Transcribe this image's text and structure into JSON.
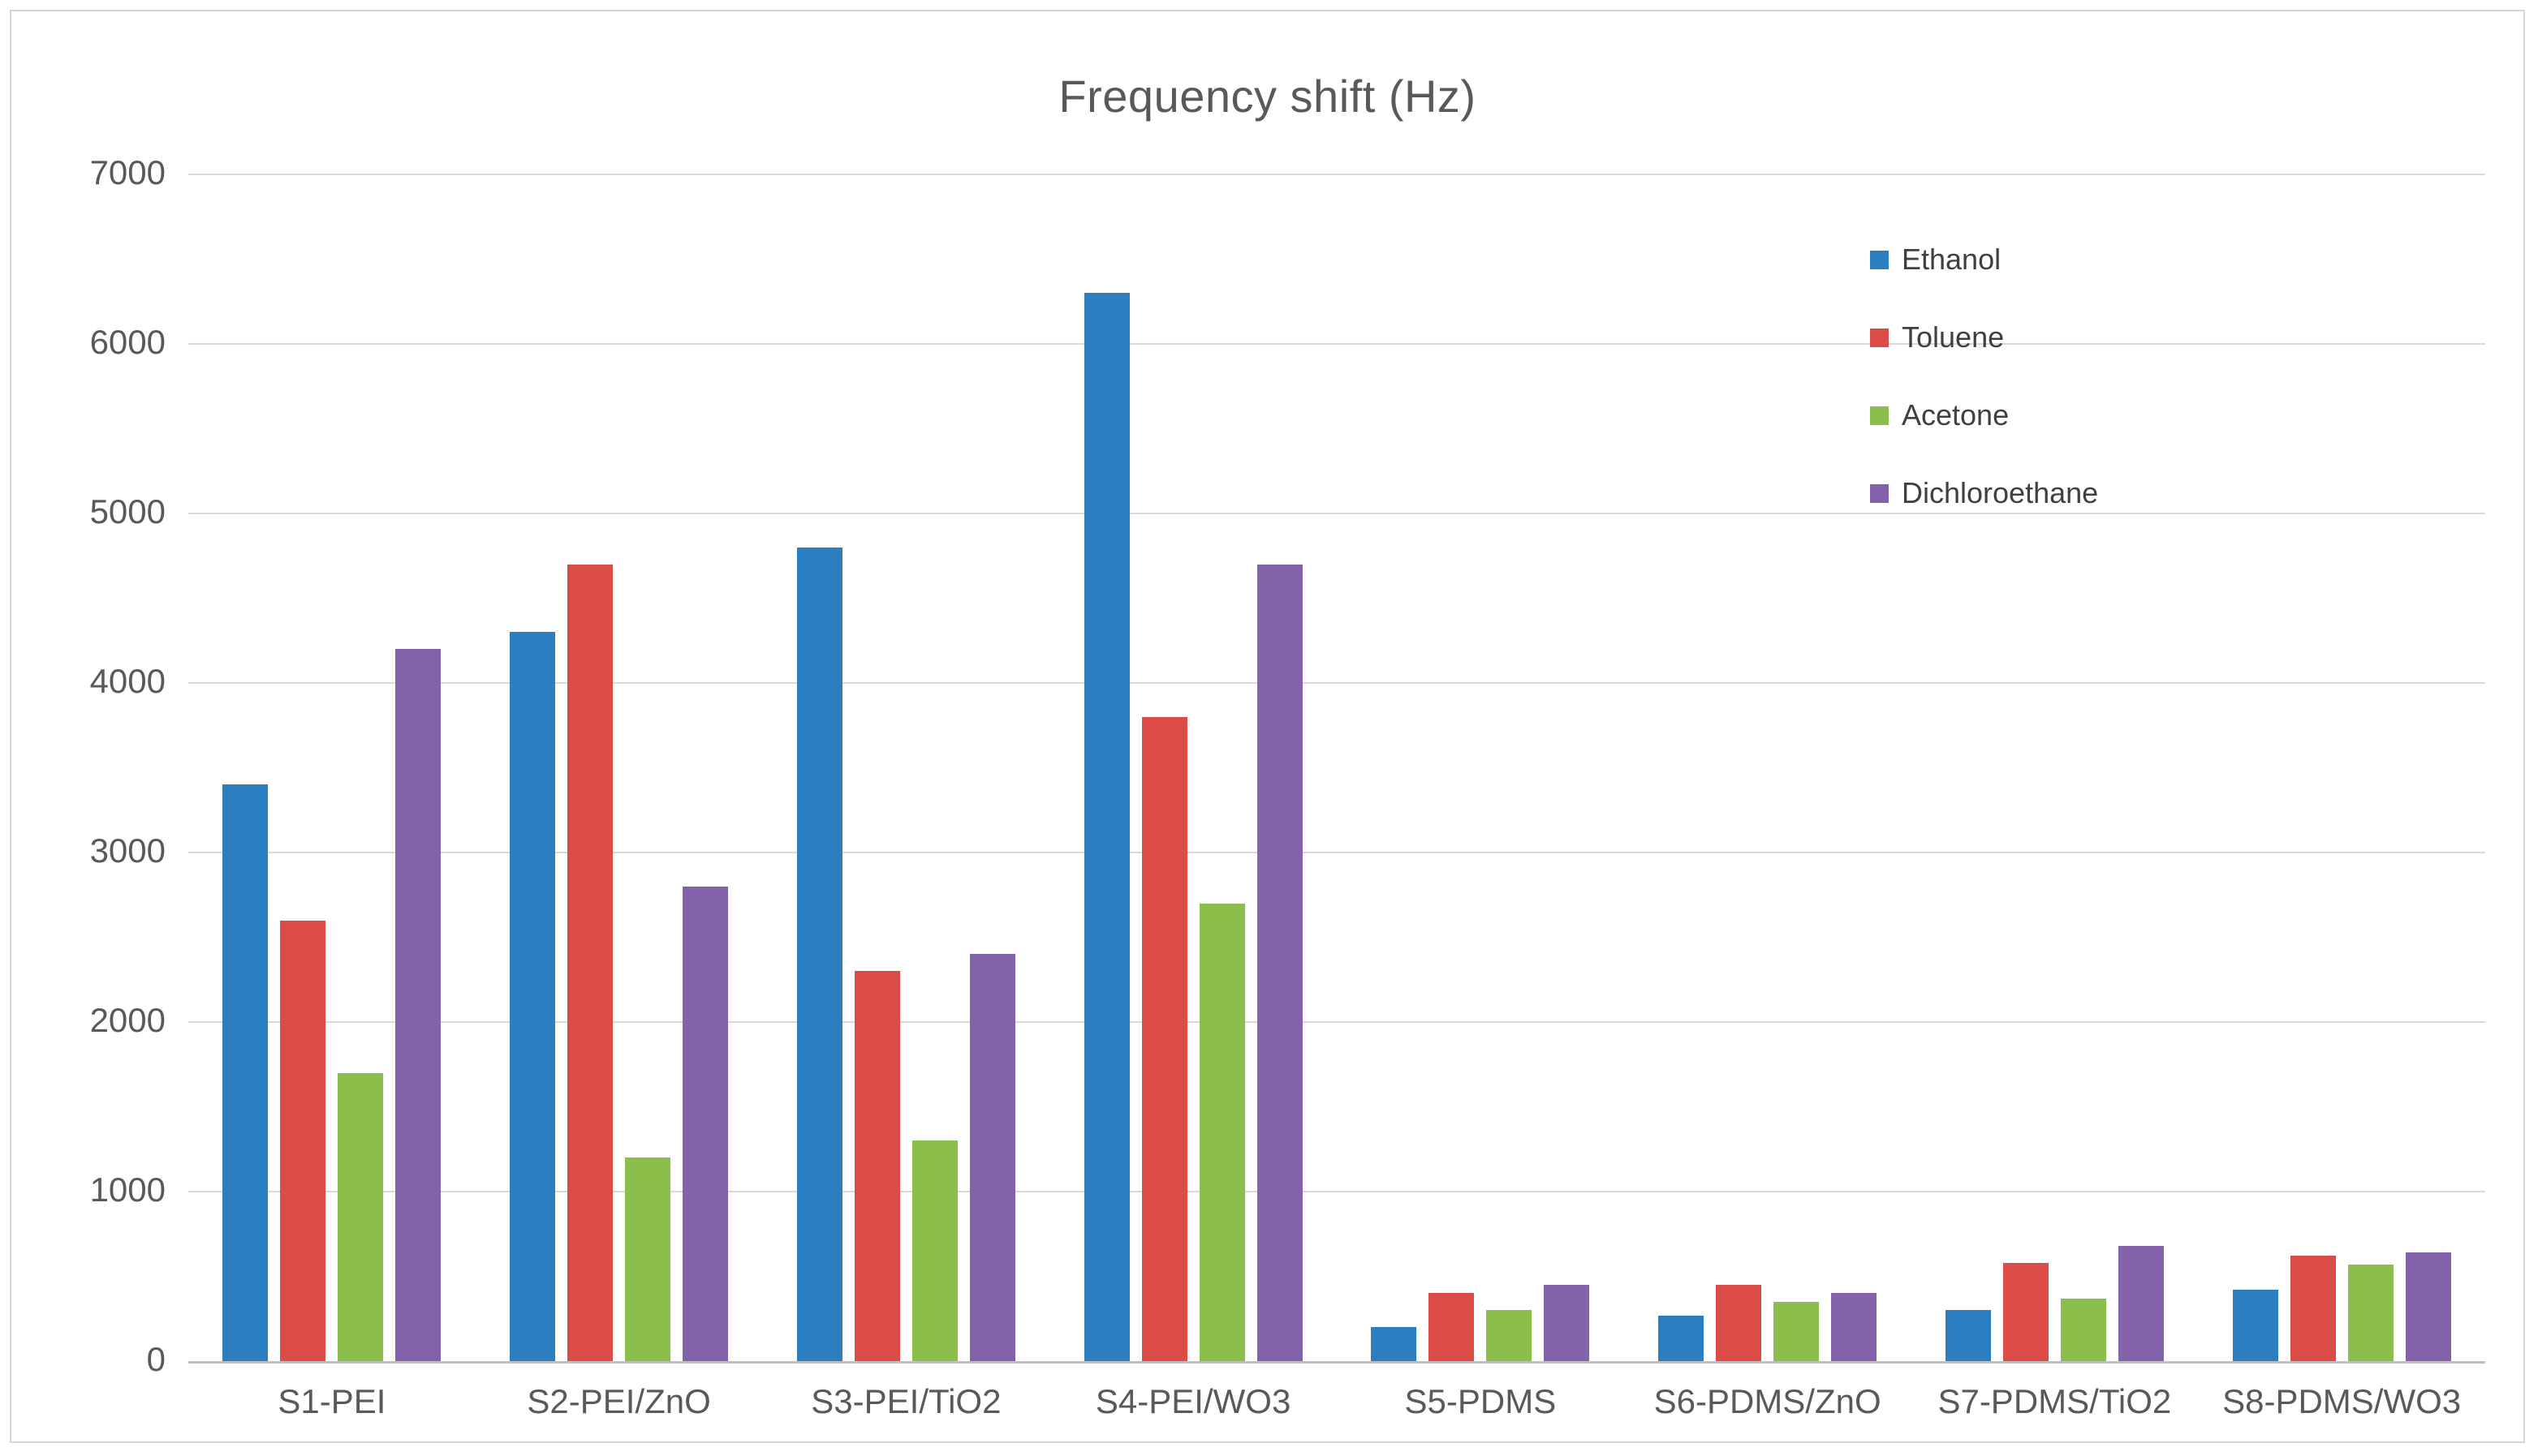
{
  "chart_data": {
    "type": "bar",
    "title": "Frequency shift (Hz)",
    "categories": [
      "S1-PEI",
      "S2-PEI/ZnO",
      "S3-PEI/TiO2",
      "S4-PEI/WO3",
      "S5-PDMS",
      "S6-PDMS/ZnO",
      "S7-PDMS/TiO2",
      "S8-PDMS/WO3"
    ],
    "series": [
      {
        "name": "Ethanol",
        "color": "#2b7fc1",
        "values": [
          3400,
          4300,
          4800,
          6300,
          200,
          270,
          300,
          420
        ]
      },
      {
        "name": "Toluene",
        "color": "#db4c46",
        "values": [
          2600,
          4700,
          2300,
          3800,
          400,
          450,
          580,
          620
        ]
      },
      {
        "name": "Acetone",
        "color": "#8cbe4c",
        "values": [
          1700,
          1200,
          1300,
          2700,
          300,
          350,
          370,
          570
        ]
      },
      {
        "name": "Dichloroethane",
        "color": "#8262a8",
        "values": [
          4200,
          2800,
          2400,
          4700,
          450,
          400,
          680,
          640
        ]
      }
    ],
    "ylim": [
      0,
      7000
    ],
    "yticks": [
      0,
      1000,
      2000,
      3000,
      4000,
      5000,
      6000,
      7000
    ],
    "grid": true,
    "legend_position": "top-right",
    "axis_text_color": "#595959",
    "gridline_color": "#d9d9d9",
    "axis_line_color": "#bfbfbf"
  }
}
